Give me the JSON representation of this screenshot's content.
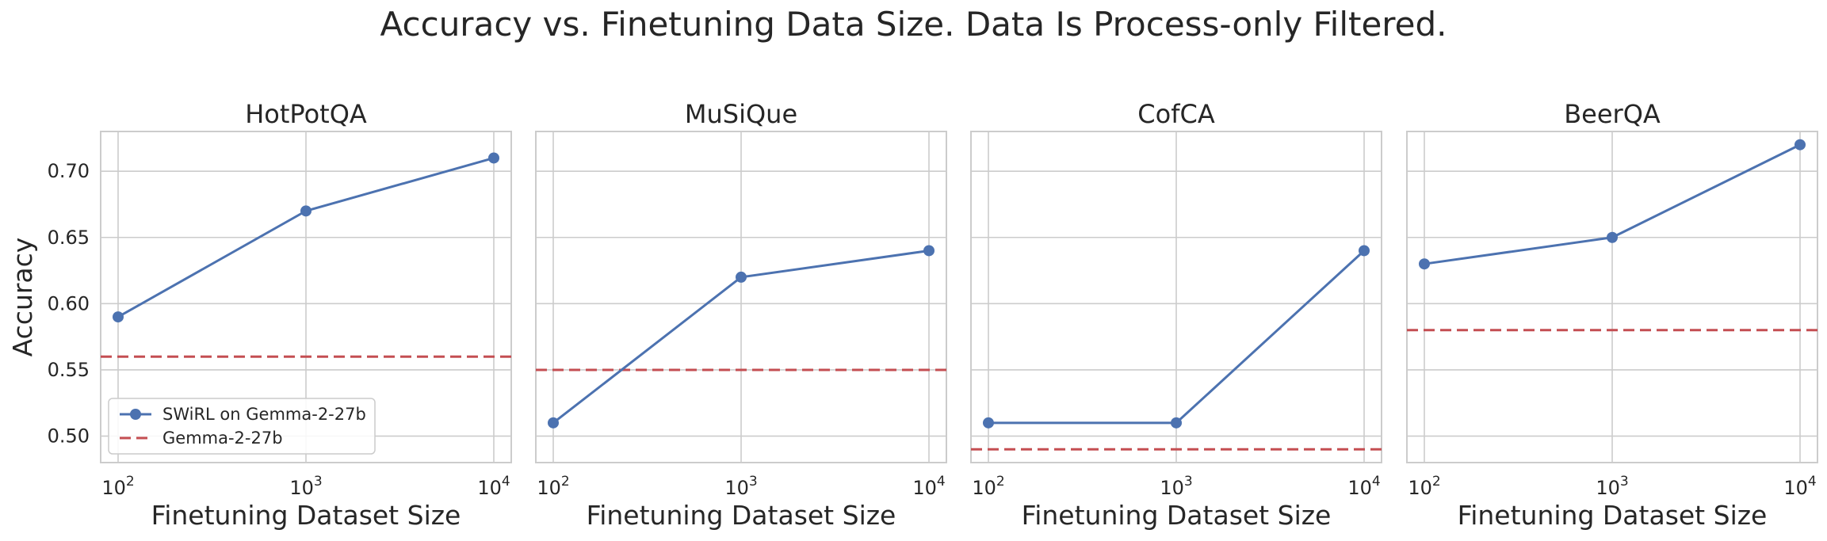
{
  "figure": {
    "title": "Accuracy vs. Finetuning Data Size. Data Is Process-only Filtered.",
    "ylabel": "Accuracy",
    "xlabel": "Finetuning Dataset Size"
  },
  "colors": {
    "swirl": "#4c72b0",
    "baseline": "#c44e52",
    "grid": "#cccccc"
  },
  "legend": {
    "placement": "lower-left",
    "items": [
      "SWiRL on Gemma-2-27b",
      "Gemma-2-27b"
    ]
  },
  "chart_data": [
    {
      "type": "line",
      "title": "HotPotQA",
      "xlabel": "Finetuning Dataset Size",
      "ylabel": "Accuracy",
      "x_scale": "log",
      "x": [
        100,
        1000,
        10000
      ],
      "x_ticks": [
        {
          "base": "10",
          "exp": "2"
        },
        {
          "base": "10",
          "exp": "3"
        },
        {
          "base": "10",
          "exp": "4"
        }
      ],
      "ylim": [
        0.48,
        0.73
      ],
      "y_ticks": [
        "0.50",
        "0.55",
        "0.60",
        "0.65",
        "0.70"
      ],
      "series": [
        {
          "name": "SWiRL on Gemma-2-27b",
          "values": [
            0.59,
            0.67,
            0.71
          ],
          "style": "line-marker"
        }
      ],
      "baseline": {
        "name": "Gemma-2-27b",
        "value": 0.56,
        "style": "dashed"
      },
      "grid": true,
      "legend": true
    },
    {
      "type": "line",
      "title": "MuSiQue",
      "xlabel": "Finetuning Dataset Size",
      "x_scale": "log",
      "x": [
        100,
        1000,
        10000
      ],
      "x_ticks": [
        {
          "base": "10",
          "exp": "2"
        },
        {
          "base": "10",
          "exp": "3"
        },
        {
          "base": "10",
          "exp": "4"
        }
      ],
      "ylim": [
        0.48,
        0.73
      ],
      "series": [
        {
          "name": "SWiRL on Gemma-2-27b",
          "values": [
            0.51,
            0.62,
            0.64
          ],
          "style": "line-marker"
        }
      ],
      "baseline": {
        "name": "Gemma-2-27b",
        "value": 0.55,
        "style": "dashed"
      },
      "grid": true,
      "legend": false
    },
    {
      "type": "line",
      "title": "CofCA",
      "xlabel": "Finetuning Dataset Size",
      "x_scale": "log",
      "x": [
        100,
        1000,
        10000
      ],
      "x_ticks": [
        {
          "base": "10",
          "exp": "2"
        },
        {
          "base": "10",
          "exp": "3"
        },
        {
          "base": "10",
          "exp": "4"
        }
      ],
      "ylim": [
        0.48,
        0.73
      ],
      "series": [
        {
          "name": "SWiRL on Gemma-2-27b",
          "values": [
            0.51,
            0.51,
            0.64
          ],
          "style": "line-marker"
        }
      ],
      "baseline": {
        "name": "Gemma-2-27b",
        "value": 0.49,
        "style": "dashed"
      },
      "grid": true,
      "legend": false
    },
    {
      "type": "line",
      "title": "BeerQA",
      "xlabel": "Finetuning Dataset Size",
      "x_scale": "log",
      "x": [
        100,
        1000,
        10000
      ],
      "x_ticks": [
        {
          "base": "10",
          "exp": "2"
        },
        {
          "base": "10",
          "exp": "3"
        },
        {
          "base": "10",
          "exp": "4"
        }
      ],
      "ylim": [
        0.48,
        0.73
      ],
      "series": [
        {
          "name": "SWiRL on Gemma-2-27b",
          "values": [
            0.63,
            0.65,
            0.72
          ],
          "style": "line-marker"
        }
      ],
      "baseline": {
        "name": "Gemma-2-27b",
        "value": 0.58,
        "style": "dashed"
      },
      "grid": true,
      "legend": false
    }
  ]
}
